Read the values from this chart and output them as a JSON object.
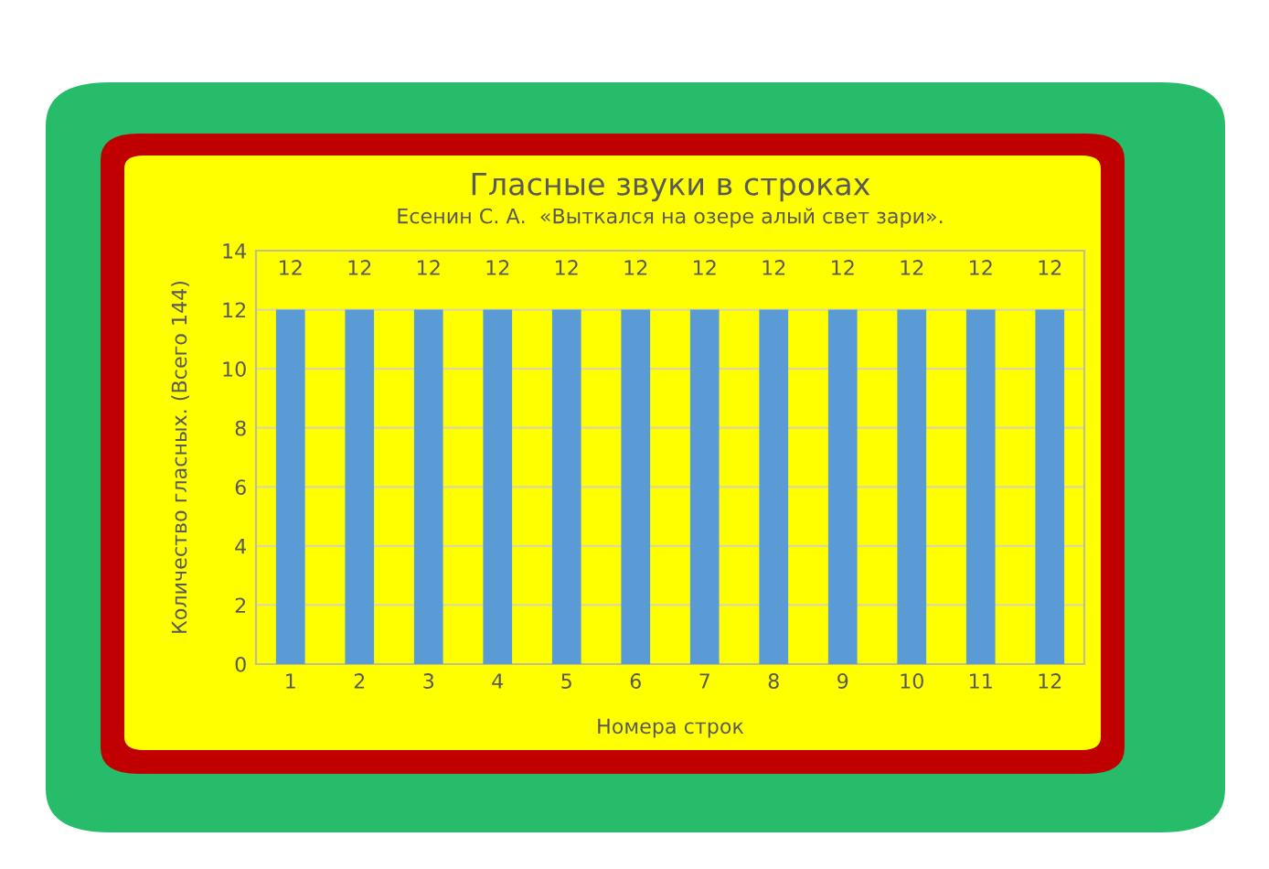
{
  "chart_data": {
    "type": "bar",
    "title": "Гласные звуки в строках",
    "subtitle": "Есенин С. А.  «Выткался на озере алый свет зари».",
    "xlabel": "Номера строк",
    "ylabel": "Количество гласных. (Всего 144)",
    "categories": [
      "1",
      "2",
      "3",
      "4",
      "5",
      "6",
      "7",
      "8",
      "9",
      "10",
      "11",
      "12"
    ],
    "values": [
      12,
      12,
      12,
      12,
      12,
      12,
      12,
      12,
      12,
      12,
      12,
      12
    ],
    "color": "#5b9bd5",
    "ylim": [
      0,
      14
    ],
    "yticks": [
      0,
      2,
      4,
      6,
      8,
      10,
      12,
      14
    ],
    "grid": "y",
    "data_labels": true
  }
}
